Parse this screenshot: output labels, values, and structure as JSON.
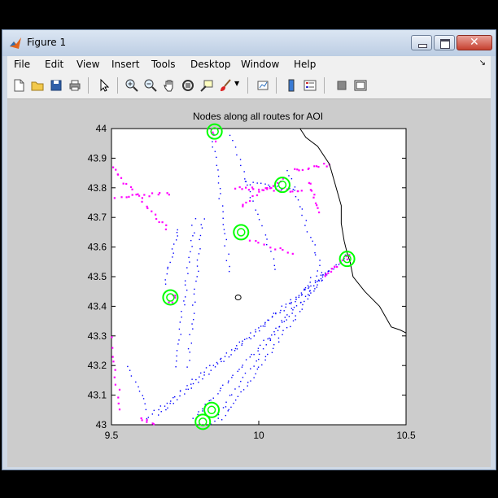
{
  "window": {
    "title": "Figure 1"
  },
  "menu": {
    "items": [
      "File",
      "Edit",
      "View",
      "Insert",
      "Tools",
      "Desktop",
      "Window",
      "Help"
    ]
  },
  "toolbar": {
    "icons": [
      "new-file-icon",
      "open-folder-icon",
      "save-icon",
      "print-icon",
      "pointer-icon",
      "zoom-in-icon",
      "zoom-out-icon",
      "pan-hand-icon",
      "rotate-3d-icon",
      "data-cursor-icon",
      "brush-icon",
      "link-plot-icon",
      "colorbar-icon",
      "legend-icon",
      "hide-plot-tools-icon",
      "show-plot-tools-icon"
    ]
  },
  "chart_data": {
    "type": "scatter",
    "title": "Nodes along all routes for AOI",
    "xlabel": "",
    "ylabel": "",
    "xlim": [
      9.5,
      10.5
    ],
    "ylim": [
      43,
      44
    ],
    "xticks": [
      "9.5",
      "10",
      "10.5"
    ],
    "yticks": [
      "43",
      "43.1",
      "43.2",
      "43.3",
      "43.4",
      "43.5",
      "43.6",
      "43.7",
      "43.8",
      "43.9",
      "44"
    ],
    "series": [
      {
        "name": "route nodes (blue)",
        "color": "#0000ff",
        "marker": "dot",
        "segments": [
          {
            "from": [
              9.62,
              43.02
            ],
            "to": [
              10.3,
              43.57
            ],
            "n": 70
          },
          {
            "from": [
              9.66,
              43.03
            ],
            "to": [
              10.26,
              43.54
            ],
            "n": 55
          },
          {
            "from": [
              9.78,
              43.02
            ],
            "to": [
              10.24,
              43.52
            ],
            "n": 55
          },
          {
            "from": [
              9.88,
              43.02
            ],
            "to": [
              10.22,
              43.5
            ],
            "n": 45
          },
          {
            "from": [
              9.84,
              43.0
            ],
            "to": [
              10.2,
              43.52
            ],
            "n": 40
          },
          {
            "from": [
              9.72,
              43.2
            ],
            "to": [
              9.78,
              43.69
            ],
            "n": 28
          },
          {
            "from": [
              9.76,
              43.2
            ],
            "to": [
              9.81,
              43.7
            ],
            "n": 26
          },
          {
            "from": [
              9.68,
              43.48
            ],
            "to": [
              9.73,
              43.66
            ],
            "n": 14
          },
          {
            "from": [
              9.84,
              44.0
            ],
            "to": [
              9.9,
              43.52
            ],
            "n": 25
          },
          {
            "from": [
              9.9,
              44.0
            ],
            "to": [
              10.06,
              43.52
            ],
            "n": 24
          },
          {
            "from": [
              10.1,
              43.86
            ],
            "to": [
              10.22,
              43.5
            ],
            "n": 22
          },
          {
            "from": [
              9.95,
              43.82
            ],
            "to": [
              10.12,
              43.79
            ],
            "n": 16
          },
          {
            "from": [
              9.56,
              43.2
            ],
            "to": [
              9.62,
              43.05
            ],
            "n": 10
          }
        ]
      },
      {
        "name": "nodes (magenta)",
        "color": "#ff00ff",
        "marker": "dot",
        "segments": [
          {
            "from": [
              9.5,
              43.87
            ],
            "to": [
              9.69,
              43.66
            ],
            "n": 22
          },
          {
            "from": [
              9.5,
              43.77
            ],
            "to": [
              9.7,
              43.78
            ],
            "n": 14
          },
          {
            "from": [
              9.92,
              43.8
            ],
            "to": [
              10.15,
              43.79
            ],
            "n": 22
          },
          {
            "from": [
              9.94,
              43.74
            ],
            "to": [
              10.08,
              43.83
            ],
            "n": 14
          },
          {
            "from": [
              10.12,
              43.86
            ],
            "to": [
              10.24,
              43.88
            ],
            "n": 12
          },
          {
            "from": [
              10.17,
              43.82
            ],
            "to": [
              10.2,
              43.72
            ],
            "n": 10
          },
          {
            "from": [
              9.97,
              43.62
            ],
            "to": [
              10.12,
              43.58
            ],
            "n": 10
          },
          {
            "from": [
              10.22,
              43.5
            ],
            "to": [
              10.31,
              43.57
            ],
            "n": 14
          },
          {
            "from": [
              9.5,
              43.3
            ],
            "to": [
              9.53,
              43.05
            ],
            "n": 12
          },
          {
            "from": [
              9.6,
              43.02
            ],
            "to": [
              9.66,
              43.0
            ],
            "n": 8
          },
          {
            "from": [
              9.83,
              44.0
            ],
            "to": [
              9.85,
              43.96
            ],
            "n": 6
          },
          {
            "from": [
              9.7,
              43.41
            ],
            "to": [
              9.72,
              43.44
            ],
            "n": 5
          }
        ]
      },
      {
        "name": "selected nodes (green circles)",
        "color": "#00ff00",
        "marker": "circle",
        "points": [
          [
            9.85,
            43.99
          ],
          [
            10.08,
            43.81
          ],
          [
            9.94,
            43.65
          ],
          [
            9.7,
            43.43
          ],
          [
            10.3,
            43.56
          ],
          [
            9.84,
            43.05
          ],
          [
            9.81,
            43.01
          ]
        ]
      },
      {
        "name": "coastline",
        "color": "#000000",
        "marker": "line",
        "points": [
          [
            10.14,
            44.0
          ],
          [
            10.16,
            43.97
          ],
          [
            10.2,
            43.94
          ],
          [
            10.24,
            43.88
          ],
          [
            10.26,
            43.81
          ],
          [
            10.28,
            43.74
          ],
          [
            10.28,
            43.68
          ],
          [
            10.29,
            43.62
          ],
          [
            10.3,
            43.58
          ],
          [
            10.31,
            43.55
          ],
          [
            10.32,
            43.5
          ],
          [
            10.36,
            43.45
          ],
          [
            10.41,
            43.4
          ],
          [
            10.45,
            43.33
          ],
          [
            10.48,
            43.32
          ],
          [
            10.5,
            43.31
          ]
        ]
      }
    ]
  }
}
